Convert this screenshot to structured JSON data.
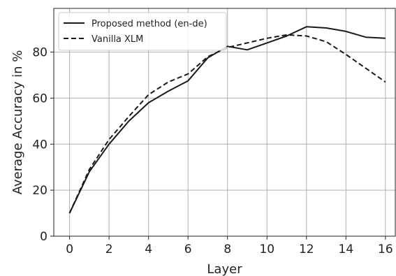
{
  "chart_data": {
    "type": "line",
    "xlabel": "Layer",
    "ylabel": "Average Accuracy in %",
    "x": [
      0,
      1,
      2,
      3,
      4,
      5,
      6,
      7,
      8,
      9,
      10,
      11,
      12,
      13,
      14,
      15,
      16
    ],
    "series": [
      {
        "name": "Proposed method (en-de)",
        "style": "solid",
        "color": "#1a1a1a",
        "values": [
          10,
          28,
          40,
          50,
          58,
          63,
          67.5,
          77.5,
          82.5,
          81,
          84,
          87,
          91,
          90.5,
          89,
          86.5,
          86
        ]
      },
      {
        "name": "Vanilla XLM",
        "style": "dashed",
        "color": "#1a1a1a",
        "values": [
          10,
          29,
          42,
          52,
          61.5,
          67,
          70.5,
          78,
          82,
          84,
          86,
          87.5,
          87,
          84.5,
          79,
          73,
          67
        ]
      }
    ],
    "xlim": [
      -0.8,
      16.5
    ],
    "ylim": [
      0,
      99
    ],
    "xticks": [
      0,
      2,
      4,
      6,
      8,
      10,
      12,
      14,
      16
    ],
    "yticks": [
      0,
      20,
      40,
      60,
      80
    ],
    "grid": true,
    "legend_position": "top-left"
  }
}
